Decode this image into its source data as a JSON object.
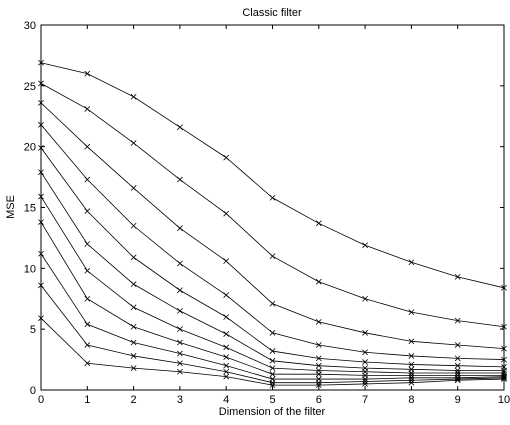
{
  "chart_data": {
    "type": "line",
    "title": "Classic filter",
    "xlabel": "Dimension of the filter",
    "ylabel": "MSE",
    "xlim": [
      0,
      10
    ],
    "ylim": [
      0,
      30
    ],
    "xticks": [
      0,
      1,
      2,
      3,
      4,
      5,
      6,
      7,
      8,
      9,
      10
    ],
    "yticks": [
      0,
      5,
      10,
      15,
      20,
      25,
      30
    ],
    "grid": false,
    "legend": "none",
    "marker": "x",
    "line_color": "#000000",
    "x": [
      0,
      1,
      2,
      3,
      4,
      5,
      6,
      7,
      8,
      9,
      10
    ],
    "series": [
      {
        "values": [
          26.9,
          26.0,
          24.1,
          21.6,
          19.1,
          15.8,
          13.7,
          11.9,
          10.5,
          9.3,
          8.4
        ]
      },
      {
        "values": [
          25.2,
          23.1,
          20.3,
          17.3,
          14.5,
          11.0,
          8.9,
          7.5,
          6.4,
          5.7,
          5.2
        ]
      },
      {
        "values": [
          23.6,
          20.0,
          16.6,
          13.3,
          10.6,
          7.1,
          5.6,
          4.7,
          4.0,
          3.7,
          3.4
        ]
      },
      {
        "values": [
          21.8,
          17.3,
          13.5,
          10.4,
          7.8,
          4.7,
          3.7,
          3.1,
          2.8,
          2.6,
          2.5
        ]
      },
      {
        "values": [
          19.9,
          14.7,
          10.9,
          8.2,
          6.0,
          3.2,
          2.6,
          2.3,
          2.1,
          2.0,
          1.9
        ]
      },
      {
        "values": [
          17.9,
          12.0,
          8.7,
          6.5,
          4.6,
          2.4,
          2.0,
          1.8,
          1.7,
          1.6,
          1.6
        ]
      },
      {
        "values": [
          15.9,
          9.8,
          6.8,
          5.0,
          3.5,
          1.8,
          1.6,
          1.5,
          1.4,
          1.4,
          1.4
        ]
      },
      {
        "values": [
          13.8,
          7.5,
          5.2,
          3.9,
          2.7,
          1.3,
          1.3,
          1.2,
          1.2,
          1.2,
          1.2
        ]
      },
      {
        "values": [
          11.2,
          5.4,
          3.9,
          3.0,
          2.0,
          0.9,
          0.9,
          0.9,
          1.0,
          1.0,
          1.1
        ]
      },
      {
        "values": [
          8.6,
          3.7,
          2.8,
          2.2,
          1.5,
          0.6,
          0.6,
          0.7,
          0.8,
          0.9,
          1.0
        ]
      },
      {
        "values": [
          5.9,
          2.2,
          1.8,
          1.5,
          1.1,
          0.4,
          0.4,
          0.5,
          0.6,
          0.8,
          0.9
        ]
      }
    ]
  }
}
